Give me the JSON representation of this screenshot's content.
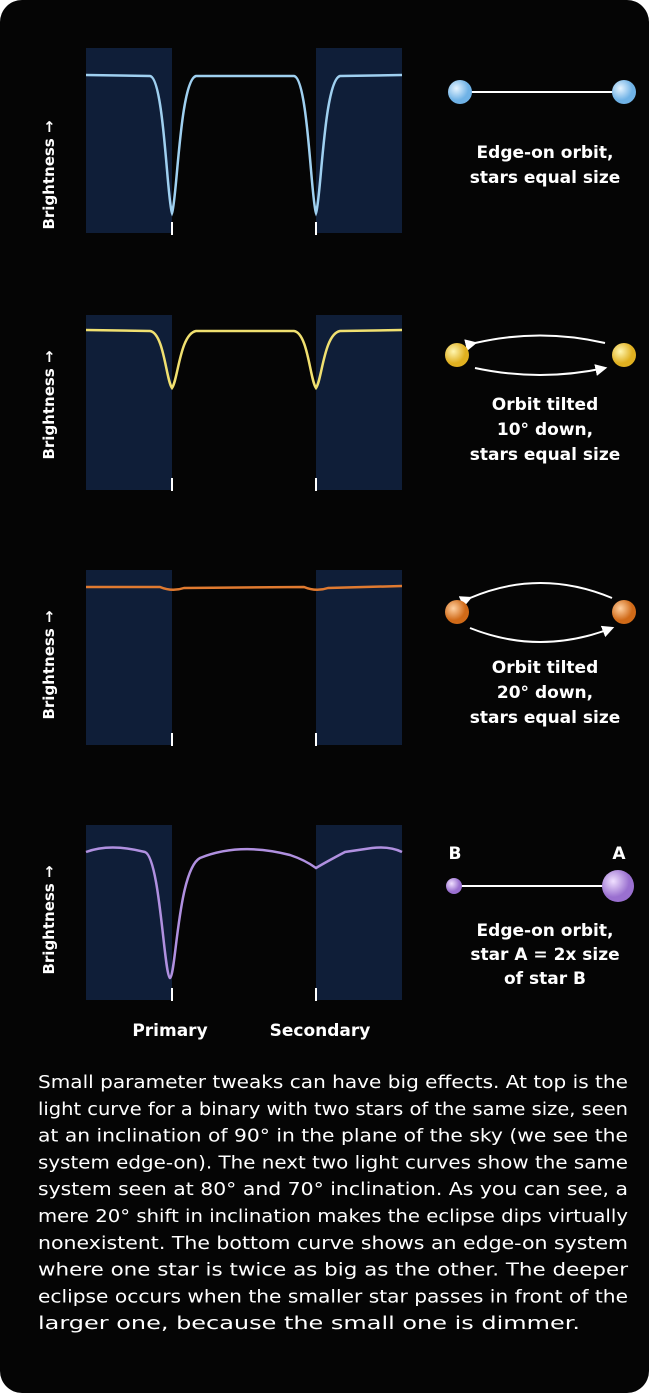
{
  "panels": [
    {
      "y_label": "Brightness →",
      "caption": [
        "Edge-on orbit,",
        "stars equal size"
      ]
    },
    {
      "y_label": "Brightness →",
      "caption": [
        "Orbit tilted",
        "10° down,",
        "stars equal size"
      ]
    },
    {
      "y_label": "Brightness →",
      "caption": [
        "Orbit tilted",
        "20° down,",
        "stars equal size"
      ]
    },
    {
      "y_label": "Brightness →",
      "caption": [
        "Edge-on orbit,",
        "star A = 2x size",
        "of star B"
      ],
      "star_labels": [
        "B",
        "A"
      ]
    }
  ],
  "x_labels": [
    "Primary",
    "Secondary"
  ],
  "description": [
    "Small parameter tweaks can have big effects. At top is the",
    "light curve for a binary with two stars of the same size, seen",
    "at an inclination of 90° in the plane of the sky (we see the",
    "system edge-on). The next two light curves show the same",
    "system seen at 80° and 70° inclination. As you can see, a",
    "mere 20° shift in inclination makes the eclipse dips virtually",
    "nonexistent. The bottom curve shows an edge-on system",
    "where one star is twice as big as the other. The deeper",
    "eclipse occurs when the smaller star passes in front of the",
    "larger one, because the small one is dimmer."
  ]
}
